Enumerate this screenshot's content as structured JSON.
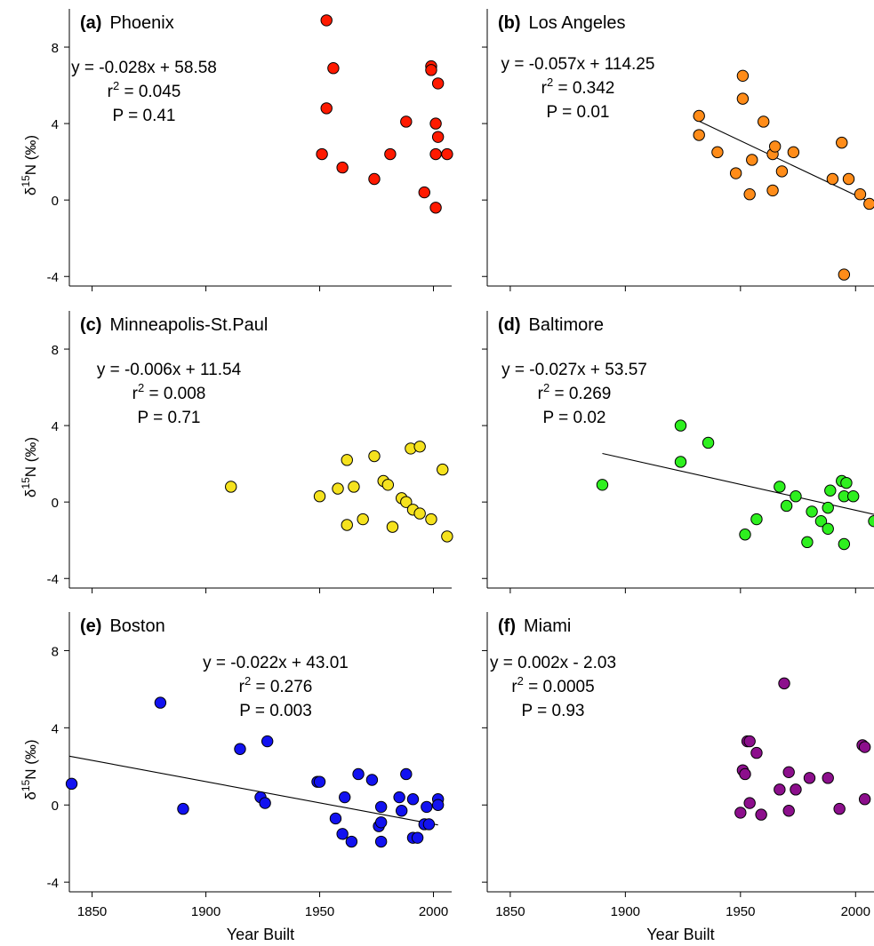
{
  "figure": {
    "y_axis_label_main": "δ",
    "y_axis_label_sup": "15",
    "y_axis_label_rest": "N (‰)",
    "x_axis_label": "Year Built"
  },
  "chart_data": [
    {
      "type": "scatter",
      "panel_letter": "(a)",
      "title": "Phoenix",
      "equation": "y = -0.028x + 58.58",
      "r2_prefix": "r",
      "r2_sup": "2",
      "r2_value": " = 0.045",
      "p_text": "P = 0.41",
      "color": "#ff1a00",
      "xlim": [
        1840,
        2008
      ],
      "ylim": [
        -4.5,
        10
      ],
      "xticks": [
        1850,
        1900,
        1950,
        2000
      ],
      "yticks": [
        -4,
        0,
        4,
        8
      ],
      "show_xticklabels": false,
      "show_yticklabels": true,
      "regression": null,
      "points": [
        {
          "x": 1953,
          "y": 9.4
        },
        {
          "x": 1956,
          "y": 6.9
        },
        {
          "x": 1953,
          "y": 4.8
        },
        {
          "x": 1951,
          "y": 2.4
        },
        {
          "x": 1960,
          "y": 1.7
        },
        {
          "x": 1974,
          "y": 1.1
        },
        {
          "x": 1981,
          "y": 2.4
        },
        {
          "x": 1988,
          "y": 4.1
        },
        {
          "x": 1996,
          "y": 0.4
        },
        {
          "x": 1999,
          "y": 7.0
        },
        {
          "x": 1999,
          "y": 6.8
        },
        {
          "x": 2002,
          "y": 6.1
        },
        {
          "x": 2001,
          "y": 4.0
        },
        {
          "x": 2002,
          "y": 3.3
        },
        {
          "x": 2001,
          "y": 2.4
        },
        {
          "x": 2006,
          "y": 2.4
        },
        {
          "x": 2001,
          "y": -0.4
        }
      ]
    },
    {
      "type": "scatter",
      "panel_letter": "(b)",
      "title": "Los Angeles",
      "equation": "y = -0.057x + 114.25",
      "r2_prefix": "r",
      "r2_sup": "2",
      "r2_value": " = 0.342",
      "p_text": "P = 0.01",
      "color": "#ff8c19",
      "xlim": [
        1840,
        2008
      ],
      "ylim": [
        -4.5,
        10
      ],
      "xticks": [
        1850,
        1900,
        1950,
        2000
      ],
      "yticks": [
        -4,
        0,
        4,
        8
      ],
      "show_xticklabels": false,
      "show_yticklabels": false,
      "regression": {
        "slope": -0.057,
        "intercept": 114.25,
        "x_start": 1932,
        "x_end": 2008
      },
      "points": [
        {
          "x": 1932,
          "y": 4.4
        },
        {
          "x": 1932,
          "y": 3.4
        },
        {
          "x": 1940,
          "y": 2.5
        },
        {
          "x": 1948,
          "y": 1.4
        },
        {
          "x": 1951,
          "y": 6.5
        },
        {
          "x": 1951,
          "y": 5.3
        },
        {
          "x": 1954,
          "y": 0.3
        },
        {
          "x": 1955,
          "y": 2.1
        },
        {
          "x": 1960,
          "y": 4.1
        },
        {
          "x": 1964,
          "y": 2.4
        },
        {
          "x": 1965,
          "y": 2.8
        },
        {
          "x": 1964,
          "y": 0.5
        },
        {
          "x": 1968,
          "y": 1.5
        },
        {
          "x": 1973,
          "y": 2.5
        },
        {
          "x": 1990,
          "y": 1.1
        },
        {
          "x": 1994,
          "y": 3.0
        },
        {
          "x": 1997,
          "y": 1.1
        },
        {
          "x": 2002,
          "y": 0.3
        },
        {
          "x": 2006,
          "y": -0.2
        },
        {
          "x": 1995,
          "y": -3.9
        }
      ]
    },
    {
      "type": "scatter",
      "panel_letter": "(c)",
      "title": "Minneapolis-St.Paul",
      "equation": "y = -0.006x + 11.54",
      "r2_prefix": "r",
      "r2_sup": "2",
      "r2_value": " = 0.008",
      "p_text": "P = 0.71",
      "color": "#f5e21e",
      "xlim": [
        1840,
        2008
      ],
      "ylim": [
        -4.5,
        10
      ],
      "xticks": [
        1850,
        1900,
        1950,
        2000
      ],
      "yticks": [
        -4,
        0,
        4,
        8
      ],
      "show_xticklabels": false,
      "show_yticklabels": true,
      "regression": null,
      "points": [
        {
          "x": 1911,
          "y": 0.8
        },
        {
          "x": 1950,
          "y": 0.3
        },
        {
          "x": 1958,
          "y": 0.7
        },
        {
          "x": 1962,
          "y": 2.2
        },
        {
          "x": 1962,
          "y": -1.2
        },
        {
          "x": 1965,
          "y": 0.8
        },
        {
          "x": 1969,
          "y": -0.9
        },
        {
          "x": 1974,
          "y": 2.4
        },
        {
          "x": 1978,
          "y": 1.1
        },
        {
          "x": 1980,
          "y": 0.9
        },
        {
          "x": 1982,
          "y": -1.3
        },
        {
          "x": 1986,
          "y": 0.2
        },
        {
          "x": 1988,
          "y": 0.0
        },
        {
          "x": 1990,
          "y": 2.8
        },
        {
          "x": 1991,
          "y": -0.4
        },
        {
          "x": 1994,
          "y": 2.9
        },
        {
          "x": 1994,
          "y": -0.6
        },
        {
          "x": 1999,
          "y": -0.9
        },
        {
          "x": 2004,
          "y": 1.7
        },
        {
          "x": 2006,
          "y": -1.8
        }
      ]
    },
    {
      "type": "scatter",
      "panel_letter": "(d)",
      "title": "Baltimore",
      "equation": "y = -0.027x + 53.57",
      "r2_prefix": "r",
      "r2_sup": "2",
      "r2_value": " = 0.269",
      "p_text": "P = 0.02",
      "color": "#2ef01f",
      "xlim": [
        1840,
        2008
      ],
      "ylim": [
        -4.5,
        10
      ],
      "xticks": [
        1850,
        1900,
        1950,
        2000
      ],
      "yticks": [
        -4,
        0,
        4,
        8
      ],
      "show_xticklabels": false,
      "show_yticklabels": false,
      "regression": {
        "slope": -0.027,
        "intercept": 53.57,
        "x_start": 1890,
        "x_end": 2008
      },
      "points": [
        {
          "x": 1890,
          "y": 0.9
        },
        {
          "x": 1924,
          "y": 4.0
        },
        {
          "x": 1924,
          "y": 2.1
        },
        {
          "x": 1936,
          "y": 3.1
        },
        {
          "x": 1952,
          "y": -1.7
        },
        {
          "x": 1957,
          "y": -0.9
        },
        {
          "x": 1967,
          "y": 0.8
        },
        {
          "x": 1970,
          "y": -0.2
        },
        {
          "x": 1974,
          "y": 0.3
        },
        {
          "x": 1979,
          "y": -2.1
        },
        {
          "x": 1981,
          "y": -0.5
        },
        {
          "x": 1985,
          "y": -1.0
        },
        {
          "x": 1988,
          "y": -0.3
        },
        {
          "x": 1988,
          "y": -1.4
        },
        {
          "x": 1989,
          "y": 0.6
        },
        {
          "x": 1994,
          "y": 1.1
        },
        {
          "x": 1995,
          "y": 0.3
        },
        {
          "x": 1996,
          "y": 1.0
        },
        {
          "x": 1999,
          "y": 0.3
        },
        {
          "x": 1995,
          "y": -2.2
        },
        {
          "x": 2008,
          "y": -1.0
        }
      ]
    },
    {
      "type": "scatter",
      "panel_letter": "(e)",
      "title": "Boston",
      "equation": "y = -0.022x + 43.01",
      "r2_prefix": "r",
      "r2_sup": "2",
      "r2_value": " = 0.276",
      "p_text": "P = 0.003",
      "color": "#1212f0",
      "xlim": [
        1840,
        2008
      ],
      "ylim": [
        -4.5,
        10
      ],
      "xticks": [
        1850,
        1900,
        1950,
        2000
      ],
      "yticks": [
        -4,
        0,
        4,
        8
      ],
      "show_xticklabels": true,
      "show_yticklabels": true,
      "regression": {
        "slope": -0.022,
        "intercept": 43.01,
        "x_start": 1840,
        "x_end": 2002
      },
      "points": [
        {
          "x": 1841,
          "y": 1.1
        },
        {
          "x": 1880,
          "y": 5.3
        },
        {
          "x": 1890,
          "y": -0.2
        },
        {
          "x": 1915,
          "y": 2.9
        },
        {
          "x": 1927,
          "y": 3.3
        },
        {
          "x": 1924,
          "y": 0.4
        },
        {
          "x": 1926,
          "y": 0.1
        },
        {
          "x": 1949,
          "y": 1.2
        },
        {
          "x": 1950,
          "y": 1.2
        },
        {
          "x": 1961,
          "y": 0.4
        },
        {
          "x": 1957,
          "y": -0.7
        },
        {
          "x": 1960,
          "y": -1.5
        },
        {
          "x": 1964,
          "y": -1.9
        },
        {
          "x": 1967,
          "y": 1.6
        },
        {
          "x": 1973,
          "y": 1.3
        },
        {
          "x": 1976,
          "y": -1.1
        },
        {
          "x": 1977,
          "y": -0.1
        },
        {
          "x": 1977,
          "y": -0.9
        },
        {
          "x": 1977,
          "y": -1.9
        },
        {
          "x": 1985,
          "y": 0.4
        },
        {
          "x": 1986,
          "y": -0.3
        },
        {
          "x": 1988,
          "y": 1.6
        },
        {
          "x": 1991,
          "y": 0.3
        },
        {
          "x": 1991,
          "y": -1.7
        },
        {
          "x": 1993,
          "y": -1.7
        },
        {
          "x": 1996,
          "y": -1.0
        },
        {
          "x": 1997,
          "y": -0.1
        },
        {
          "x": 1998,
          "y": -1.0
        },
        {
          "x": 2002,
          "y": 0.3
        },
        {
          "x": 2002,
          "y": 0.0
        }
      ]
    },
    {
      "type": "scatter",
      "panel_letter": "(f)",
      "title": "Miami",
      "equation": "y = 0.002x - 2.03",
      "r2_prefix": "r",
      "r2_sup": "2",
      "r2_value": " = 0.0005",
      "p_text": "P = 0.93",
      "color": "#8c0f8c",
      "xlim": [
        1840,
        2008
      ],
      "ylim": [
        -4.5,
        10
      ],
      "xticks": [
        1850,
        1900,
        1950,
        2000
      ],
      "yticks": [
        -4,
        0,
        4,
        8
      ],
      "show_xticklabels": true,
      "show_yticklabels": false,
      "regression": null,
      "points": [
        {
          "x": 1950,
          "y": -0.4
        },
        {
          "x": 1951,
          "y": 1.8
        },
        {
          "x": 1952,
          "y": 1.6
        },
        {
          "x": 1953,
          "y": 3.3
        },
        {
          "x": 1954,
          "y": 3.3
        },
        {
          "x": 1954,
          "y": 0.1
        },
        {
          "x": 1957,
          "y": 2.7
        },
        {
          "x": 1959,
          "y": -0.5
        },
        {
          "x": 1967,
          "y": 0.8
        },
        {
          "x": 1969,
          "y": 6.3
        },
        {
          "x": 1971,
          "y": 1.7
        },
        {
          "x": 1971,
          "y": -0.3
        },
        {
          "x": 1974,
          "y": 0.8
        },
        {
          "x": 1980,
          "y": 1.4
        },
        {
          "x": 1988,
          "y": 1.4
        },
        {
          "x": 1993,
          "y": -0.2
        },
        {
          "x": 2003,
          "y": 3.1
        },
        {
          "x": 2004,
          "y": 3.0
        },
        {
          "x": 2004,
          "y": 0.3
        }
      ]
    }
  ]
}
